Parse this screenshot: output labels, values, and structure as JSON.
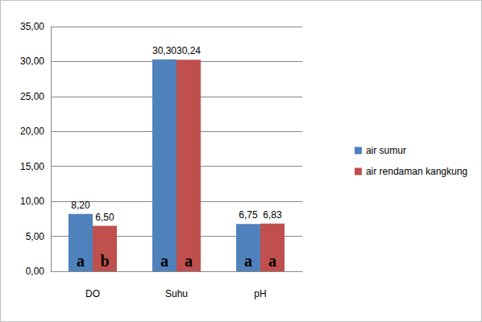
{
  "chart_data": {
    "type": "bar",
    "categories": [
      "DO",
      "Suhu",
      "pH"
    ],
    "series": [
      {
        "name": "air sumur",
        "color": "#4f81bd",
        "values": [
          8.2,
          30.3,
          6.75
        ],
        "value_labels": [
          "8,20",
          "30,30",
          "6,75"
        ],
        "annotations": [
          "a",
          "a",
          "a"
        ]
      },
      {
        "name": "air rendaman kangkung",
        "color": "#c0504d",
        "values": [
          6.5,
          30.24,
          6.83
        ],
        "value_labels": [
          "6,50",
          "30,24",
          "6,83"
        ],
        "annotations": [
          "b",
          "a",
          "a"
        ]
      }
    ],
    "ylim": [
      0,
      35
    ],
    "yticks": [
      {
        "value": 0,
        "label": "0,00"
      },
      {
        "value": 5,
        "label": "5,00"
      },
      {
        "value": 10,
        "label": "10,00"
      },
      {
        "value": 15,
        "label": "15,00"
      },
      {
        "value": 20,
        "label": "20,00"
      },
      {
        "value": 25,
        "label": "25,00"
      },
      {
        "value": 30,
        "label": "30,00"
      },
      {
        "value": 35,
        "label": "35,00"
      }
    ],
    "grid": true,
    "legend": "right",
    "data_labels": true
  }
}
